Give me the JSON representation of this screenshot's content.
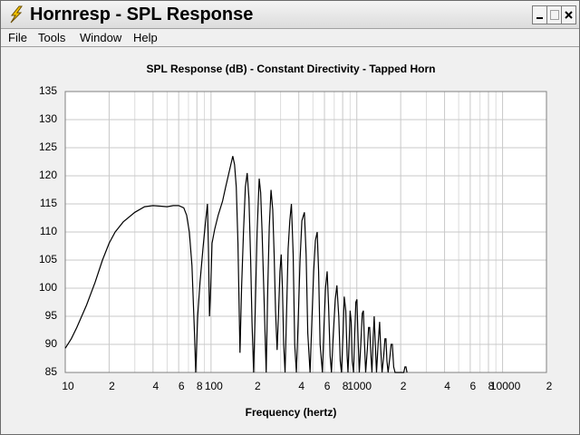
{
  "window": {
    "title": "Hornresp - SPL Response"
  },
  "menu": [
    "File",
    "Tools",
    "Window",
    "Help"
  ],
  "chart_data": {
    "type": "line",
    "title": "SPL Response (dB) - Constant Directivity - Tapped Horn",
    "x_label": "Frequency (hertz)",
    "x_log": true,
    "grid": true,
    "color": "#000000",
    "xlim": [
      10,
      20000
    ],
    "xticks": [
      10,
      {
        "value": 20,
        "label": "2"
      },
      {
        "value": 40,
        "label": "4"
      },
      {
        "value": 60,
        "label": "6"
      },
      {
        "value": 80,
        "label": "8"
      },
      100,
      {
        "value": 200,
        "label": "2"
      },
      {
        "value": 400,
        "label": "4"
      },
      {
        "value": 600,
        "label": "6"
      },
      {
        "value": 800,
        "label": "8"
      },
      1000,
      {
        "value": 2000,
        "label": "2"
      },
      {
        "value": 4000,
        "label": "4"
      },
      {
        "value": 6000,
        "label": "6"
      },
      {
        "value": 8000,
        "label": "8"
      },
      10000,
      {
        "value": 20000,
        "label": "2"
      }
    ],
    "ylim": [
      85,
      135
    ],
    "yticks": [
      85,
      90,
      95,
      100,
      105,
      110,
      115,
      120,
      125,
      130,
      135
    ],
    "x": [
      10,
      11,
      12,
      14,
      16,
      18,
      20,
      22,
      25,
      30,
      35,
      40,
      45,
      50,
      55,
      60,
      65,
      68,
      71,
      74,
      77,
      78.5,
      81,
      84,
      88,
      91,
      94.5,
      96,
      97.6,
      99.5,
      101.6,
      106,
      112,
      120,
      126,
      134,
      141,
      145,
      149,
      153,
      158,
      162,
      167,
      172,
      177,
      182,
      187,
      191,
      196,
      201,
      207,
      214,
      219,
      224,
      230,
      239,
      245,
      251,
      258,
      265,
      271,
      277,
      284,
      290,
      297,
      303,
      309,
      315,
      322,
      330,
      338,
      347,
      356,
      366,
      375,
      385,
      396,
      408,
      420,
      437,
      449,
      461,
      478,
      493,
      506,
      520,
      535,
      547,
      560,
      581,
      595,
      610,
      626,
      640,
      656,
      670,
      690,
      712,
      730,
      752,
      770,
      785,
      805,
      820,
      840,
      858,
      870,
      885,
      900,
      915,
      930,
      950,
      968,
      985,
      1002,
      1020,
      1040,
      1065,
      1090,
      1109,
      1130,
      1150,
      1180,
      1205,
      1225,
      1250,
      1270,
      1295,
      1316,
      1340,
      1365,
      1400,
      1434,
      1460,
      1490,
      1530,
      1560,
      1585,
      1610,
      1640,
      1690,
      1720,
      1753,
      1790,
      1830,
      2100,
      2140,
      2173,
      2210
    ],
    "values": [
      89.3,
      91,
      93,
      97,
      101,
      105,
      108,
      110,
      111.8,
      113.5,
      114.5,
      114.7,
      114.6,
      114.5,
      114.7,
      114.7,
      114.3,
      113,
      110,
      104,
      92,
      85,
      95,
      101,
      107,
      111,
      115,
      107,
      95,
      100,
      108,
      110.5,
      113,
      115.5,
      118,
      121,
      123.5,
      122,
      118,
      108,
      88.5,
      100,
      110,
      118,
      120.5,
      116,
      105,
      94,
      85,
      96,
      110,
      119.5,
      117,
      110,
      100,
      85,
      100,
      111,
      117.5,
      114,
      106,
      96,
      89,
      95,
      103,
      106,
      100,
      90,
      85,
      96,
      107,
      112,
      115,
      106,
      90,
      85,
      94,
      105,
      112,
      113.5,
      106,
      92,
      85,
      95,
      103,
      108.5,
      110,
      103,
      90,
      85,
      93,
      100,
      103,
      97,
      88,
      85,
      92,
      98,
      100.5,
      95,
      87,
      85,
      92,
      98.5,
      96,
      88,
      85,
      90,
      96,
      94,
      87,
      85,
      92,
      97.5,
      98,
      91,
      85,
      90,
      95.5,
      96,
      90,
      85,
      89,
      93,
      93,
      88,
      85,
      91,
      95,
      90,
      85,
      90,
      94,
      89,
      85,
      88,
      91,
      91,
      87,
      85,
      88,
      90,
      90,
      86,
      85,
      85,
      86,
      86,
      85
    ]
  }
}
